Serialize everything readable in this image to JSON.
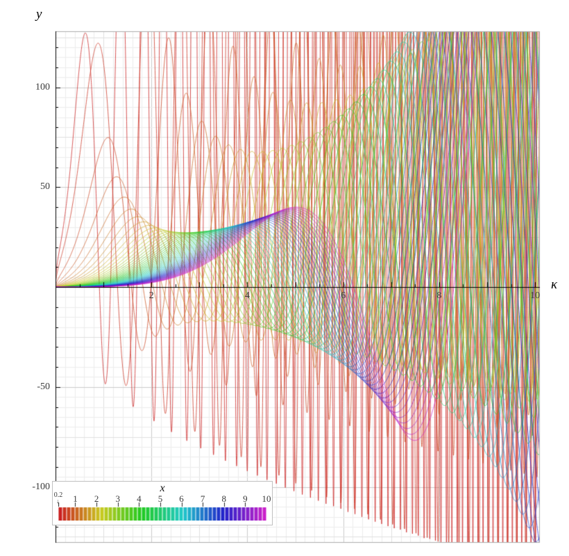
{
  "chart_data": {
    "type": "line",
    "title": "",
    "xlabel": "κ",
    "ylabel": "y",
    "xlim": [
      0,
      10.1
    ],
    "ylim": [
      -128,
      128
    ],
    "grid": true,
    "x_tick_labels": [
      "2",
      "4",
      "6",
      "8",
      "10"
    ],
    "x_tick_values": [
      2,
      4,
      6,
      8,
      10
    ],
    "y_tick_labels": [
      "100",
      "50",
      "-50",
      "-100"
    ],
    "y_tick_values": [
      100,
      50,
      -50,
      -100
    ],
    "description": "Family of 50 oscillatory curves y(κ) colored by parameter x from 0.2 (red) to 10 (magenta). Small-x (red/orange) curves oscillate early with large amplitude near κ≈1; all curves funnel through a node near κ≈2.9; green curves (x≈4) rise to a large positive peak near κ≈5.5; for κ>6 every curve oscillates with amplitude far beyond the plot range, producing dense near-vertical strokes.",
    "series_parameter": {
      "name": "x",
      "min": 0.2,
      "max": 10,
      "step": 0.2,
      "count": 50
    },
    "approx_model": {
      "formula": "y(κ;x) = A1(x)·u^q(x) · ( sin((π/2)·u^1.9) + c(x) ) / (1 + c(x)),  u = κ / k1(x)",
      "k1": "1.3·sqrt(x)",
      "q": "0.35 + 0.42·x^0.75",
      "A1": "min(125, 16 + 26/x^1.5 + 1.2·x)",
      "c": "max(0.3, 0.55 - 0.025·x)"
    },
    "colors": {
      "hue_start": 0,
      "hue_end": 300,
      "saturation": 72,
      "lightness": 46,
      "axis": "#000000",
      "frame": "#adadad",
      "grid_minor": "#ededed",
      "grid_mid": "#e0e0e0",
      "grid_major": "#cbcbcb",
      "background": "#ffffff"
    },
    "legend": {
      "title": "x",
      "below_range_label": "0.2",
      "below_range_arrow": "↓",
      "tick_labels": [
        "1",
        "2",
        "3",
        "4",
        "5",
        "6",
        "7",
        "8",
        "9",
        "10"
      ],
      "tick_values": [
        1,
        2,
        3,
        4,
        5,
        6,
        7,
        8,
        9,
        10
      ],
      "min": 0.2,
      "max": 10
    }
  }
}
